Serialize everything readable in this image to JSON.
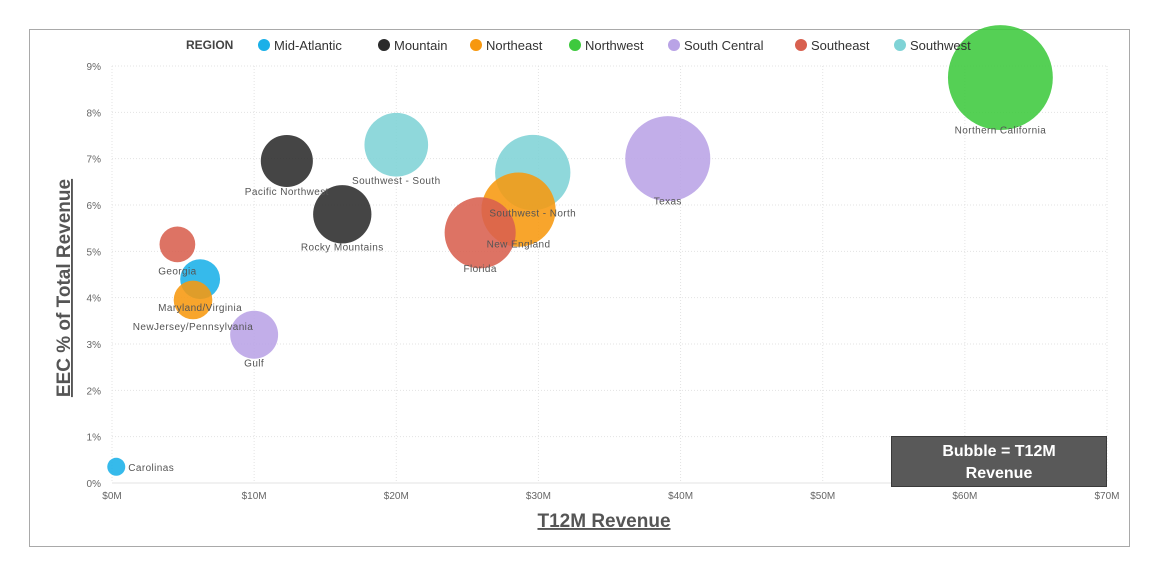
{
  "chart_data": {
    "type": "scatter",
    "legend_title": "REGION",
    "legend_placement": "top-left",
    "xlabel": "T12M Revenue",
    "ylabel": "EEC % of Total Revenue",
    "xlim": [
      0,
      70
    ],
    "ylim": [
      0,
      9
    ],
    "x_unit": "$M",
    "y_unit": "%",
    "x_ticks": [
      0,
      10,
      20,
      30,
      40,
      50,
      60,
      70
    ],
    "x_tick_labels": [
      "$0M",
      "$10M",
      "$20M",
      "$30M",
      "$40M",
      "$50M",
      "$60M",
      "$70M"
    ],
    "y_ticks": [
      0,
      1,
      2,
      3,
      4,
      5,
      6,
      7,
      8,
      9
    ],
    "y_tick_labels": [
      "0%",
      "1%",
      "2%",
      "3%",
      "4%",
      "5%",
      "6%",
      "7%",
      "8%",
      "9%"
    ],
    "grid": true,
    "bubble_size": "T12M Revenue",
    "series": [
      {
        "name": "Mid-Atlantic",
        "color": "#1ab0e8",
        "points": [
          {
            "label": "Carolinas",
            "x": 0.3,
            "y": 0.35
          },
          {
            "label": "Maryland/Virginia",
            "x": 6.2,
            "y": 4.4
          }
        ]
      },
      {
        "name": "Mountain",
        "color": "#2b2b2b",
        "points": [
          {
            "label": "Pacific Northwest",
            "x": 12.3,
            "y": 6.95
          },
          {
            "label": "Rocky Mountains",
            "x": 16.2,
            "y": 5.8
          }
        ]
      },
      {
        "name": "Northeast",
        "color": "#f7980f",
        "points": [
          {
            "label": "NewJersey/Pennsylvania",
            "x": 5.7,
            "y": 3.95
          },
          {
            "label": "New England",
            "x": 28.6,
            "y": 5.9
          }
        ]
      },
      {
        "name": "Northwest",
        "color": "#3ec93e",
        "points": [
          {
            "label": "Northern California",
            "x": 62.5,
            "y": 8.75
          }
        ]
      },
      {
        "name": "South Central",
        "color": "#b9a3e6",
        "points": [
          {
            "label": "Gulf",
            "x": 10.0,
            "y": 3.2
          },
          {
            "label": "Texas",
            "x": 39.1,
            "y": 7.0
          }
        ]
      },
      {
        "name": "Southeast",
        "color": "#d8604f",
        "points": [
          {
            "label": "Georgia",
            "x": 4.6,
            "y": 5.15
          },
          {
            "label": "Florida",
            "x": 25.9,
            "y": 5.4
          }
        ]
      },
      {
        "name": "Southwest",
        "color": "#7fd3d6",
        "points": [
          {
            "label": "Southwest - South",
            "x": 20.0,
            "y": 7.3
          },
          {
            "label": "Southwest - North",
            "x": 29.6,
            "y": 6.7
          }
        ]
      }
    ],
    "annotation": {
      "line1": "Bubble = T12M",
      "line2": "Revenue"
    }
  }
}
